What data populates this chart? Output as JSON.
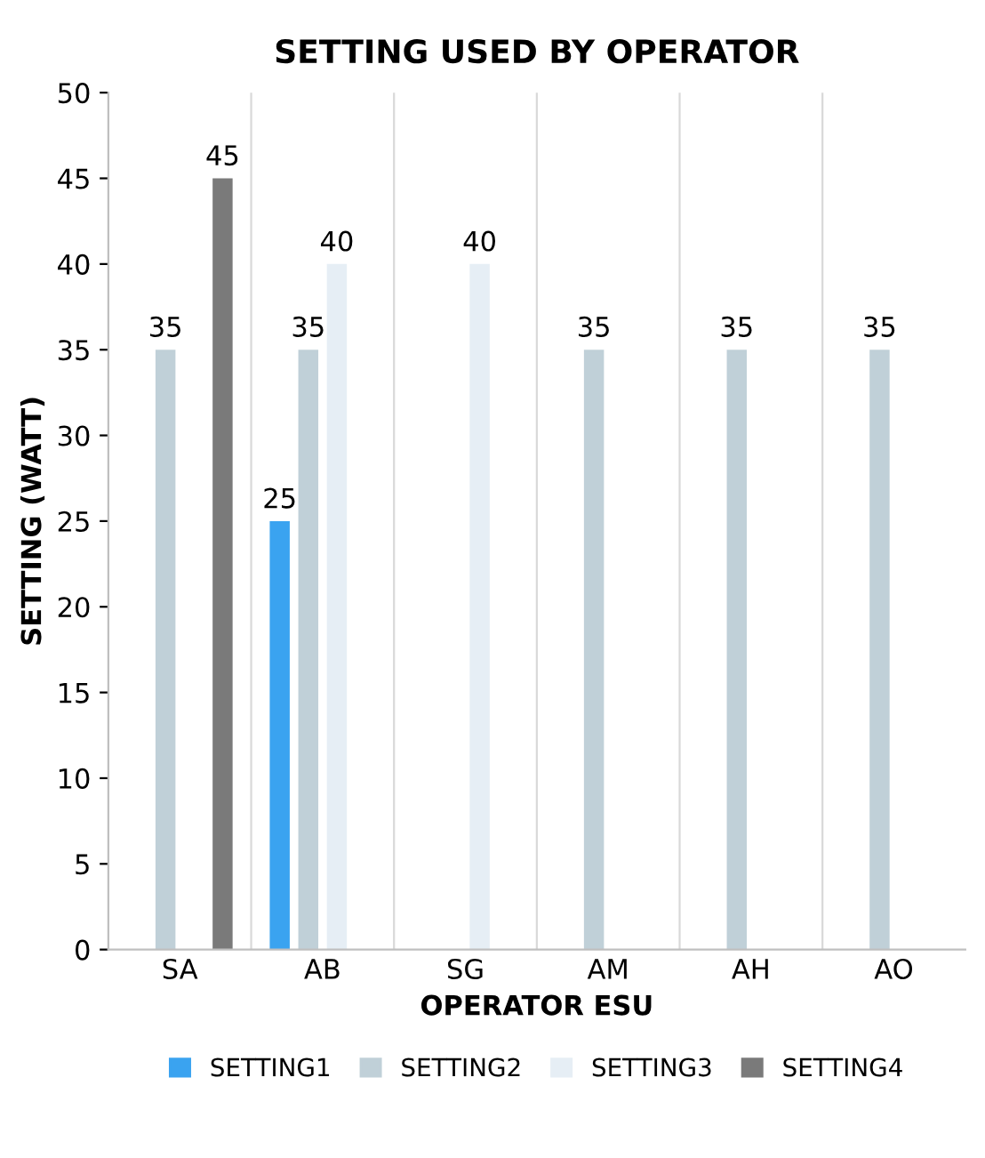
{
  "chart_data": {
    "type": "bar",
    "title": "SETTING USED BY OPERATOR",
    "xlabel": "OPERATOR ESU",
    "ylabel": "SETTING (WATT)",
    "categories": [
      "SA",
      "AB",
      "SG",
      "AM",
      "AH",
      "AO"
    ],
    "series": [
      {
        "name": "SETTING1",
        "color": "#3aa3f0",
        "values": [
          null,
          25,
          null,
          null,
          null,
          null
        ]
      },
      {
        "name": "SETTING2",
        "color": "#c0d0d8",
        "values": [
          35,
          35,
          null,
          35,
          35,
          35
        ]
      },
      {
        "name": "SETTING3",
        "color": "#e6eef5",
        "values": [
          null,
          40,
          40,
          null,
          null,
          null
        ]
      },
      {
        "name": "SETTING4",
        "color": "#7a7a7a",
        "values": [
          45,
          null,
          null,
          null,
          null,
          null
        ]
      }
    ],
    "ylim": [
      0,
      50
    ],
    "yticks": [
      0,
      5,
      10,
      15,
      20,
      25,
      30,
      35,
      40,
      45,
      50
    ],
    "grid": "x",
    "legend": "bottom",
    "data_labels": true
  }
}
